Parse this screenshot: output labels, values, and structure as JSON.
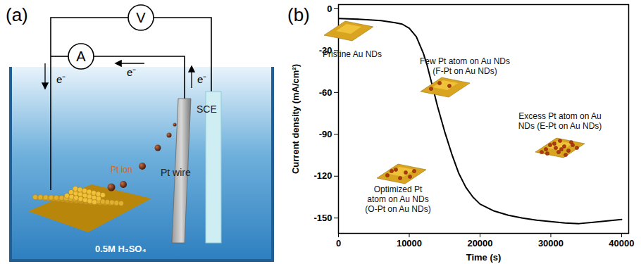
{
  "panel_labels": [
    "(a)",
    "(b)"
  ],
  "diagram": {
    "voltmeter": "V",
    "ammeter": "A",
    "electron_labels": [
      "e⁻",
      "e⁻",
      "e⁻"
    ],
    "ion_label": "Pt ion",
    "counter_electrode": "Pt wire",
    "reference_electrode": "SCE",
    "electrolyte": "0.5M H₂SO₄"
  },
  "chart_data": {
    "type": "line",
    "x_label": "Time (s)",
    "y_label": "Current density (mA/cm²)",
    "x": [
      0,
      2000,
      4000,
      6000,
      8000,
      9000,
      10000,
      11000,
      12000,
      12500,
      13000,
      13500,
      14000,
      15000,
      16000,
      17000,
      18000,
      19000,
      20000,
      22000,
      24000,
      26000,
      28000,
      30000,
      32000,
      34000,
      36000,
      38000,
      40000
    ],
    "values": [
      -7,
      -7.3,
      -7.8,
      -8.5,
      -10,
      -11,
      -14,
      -20,
      -32,
      -40,
      -50,
      -60,
      -70,
      -88,
      -104,
      -118,
      -128,
      -135,
      -140,
      -145,
      -148,
      -150,
      -151.5,
      -152.5,
      -153.5,
      -154,
      -153,
      -152,
      -151
    ],
    "color": "#000000",
    "xlim": [
      0,
      41000
    ],
    "xticks": [
      0,
      10000,
      20000,
      30000,
      40000
    ],
    "ylim": [
      -161,
      3
    ],
    "yticks": [
      -150,
      -120,
      -90,
      -60,
      -30,
      0
    ],
    "grid": false,
    "annotations": [
      "Pristine Au NDs",
      "Few Pt atom on Au NDs\n(F-Pt on Au NDs)",
      "Excess Pt atom on Au\nNDs (E-Pt on Au NDs)",
      "Optimized Pt\natom on Au NDs\n(O-Pt on Au NDs)"
    ]
  }
}
